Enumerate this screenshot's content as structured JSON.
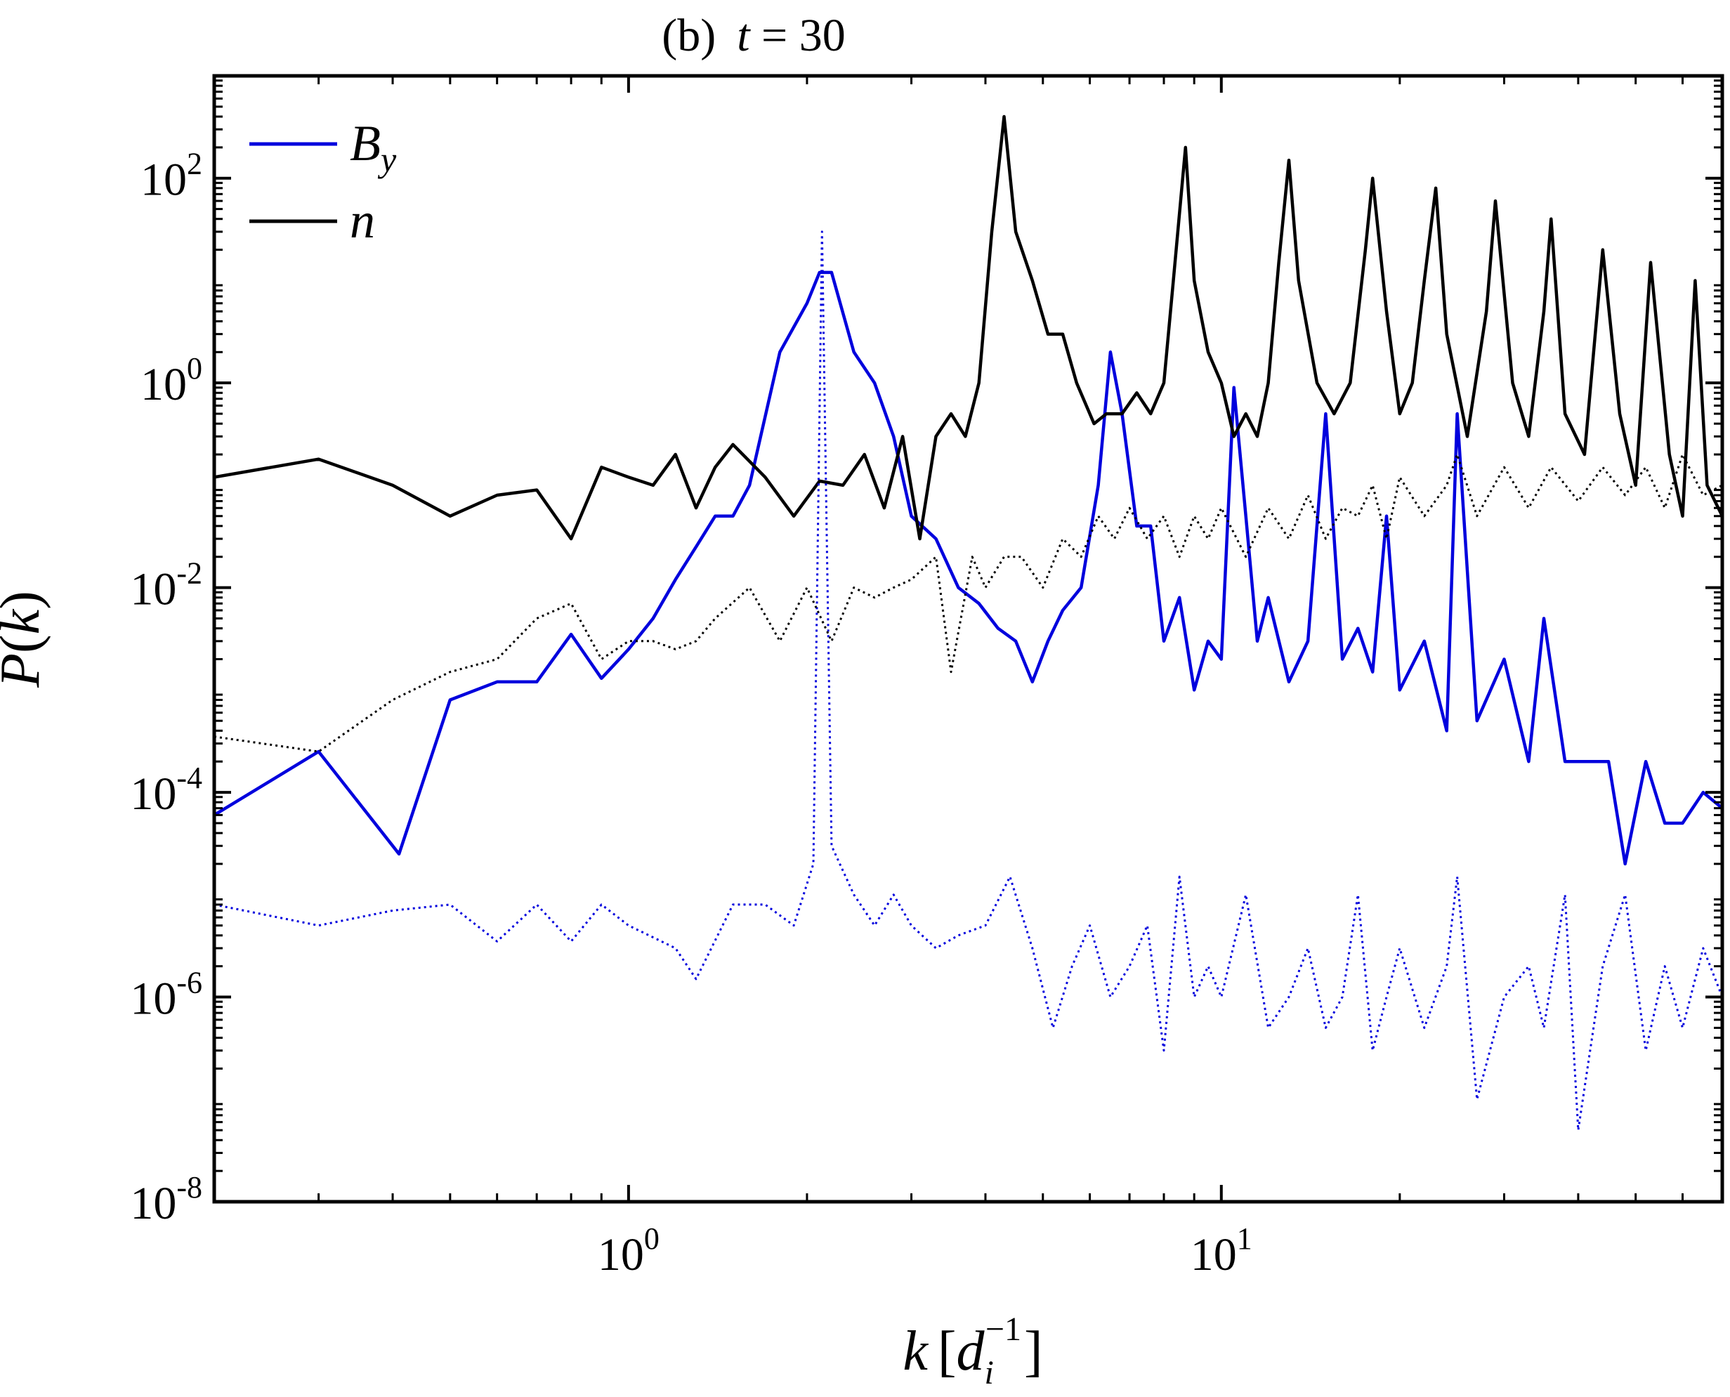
{
  "chart_data": {
    "type": "line",
    "title": {
      "label": "(b)",
      "var": "t",
      "eq": " = 30"
    },
    "xlabel": {
      "var": "k",
      "open": "[",
      "base": "d",
      "sub": "i",
      "sup": "−1",
      "close": "]"
    },
    "ylabel": {
      "name": "P",
      "open": "(",
      "var": "k",
      "close": ")"
    },
    "xscale": "log",
    "yscale": "log",
    "xlim": [
      0.2,
      70
    ],
    "ylim": [
      1e-08,
      1000
    ],
    "x_ticks": [
      {
        "value": 1,
        "base": "10",
        "exp": "0"
      },
      {
        "value": 10,
        "base": "10",
        "exp": "1"
      }
    ],
    "y_ticks": [
      {
        "value": 1e-08,
        "base": "10",
        "exp": "-8"
      },
      {
        "value": 1e-06,
        "base": "10",
        "exp": "-6"
      },
      {
        "value": 0.0001,
        "base": "10",
        "exp": "-4"
      },
      {
        "value": 0.01,
        "base": "10",
        "exp": "-2"
      },
      {
        "value": 1,
        "base": "10",
        "exp": "0"
      },
      {
        "value": 100,
        "base": "10",
        "exp": "2"
      }
    ],
    "legend": {
      "position": "top-left",
      "entries": [
        {
          "base": "B",
          "sub": "y",
          "color": "#0000dd"
        },
        {
          "base": "n",
          "sub": "",
          "color": "#000000"
        }
      ]
    },
    "series": [
      {
        "name": "B_y",
        "color": "#0000dd",
        "style": "solid",
        "points": [
          [
            0.2,
            6e-05
          ],
          [
            0.3,
            0.00025
          ],
          [
            0.41,
            2.5e-05
          ],
          [
            0.5,
            0.0008
          ],
          [
            0.6,
            0.0012
          ],
          [
            0.7,
            0.0012
          ],
          [
            0.8,
            0.0035
          ],
          [
            0.9,
            0.0013
          ],
          [
            1.0,
            0.0025
          ],
          [
            1.1,
            0.005
          ],
          [
            1.2,
            0.012
          ],
          [
            1.3,
            0.025
          ],
          [
            1.4,
            0.05
          ],
          [
            1.5,
            0.05
          ],
          [
            1.6,
            0.1
          ],
          [
            1.8,
            2
          ],
          [
            2.0,
            6
          ],
          [
            2.1,
            12
          ],
          [
            2.2,
            12
          ],
          [
            2.4,
            2
          ],
          [
            2.6,
            1
          ],
          [
            2.8,
            0.3
          ],
          [
            3.0,
            0.05
          ],
          [
            3.3,
            0.03
          ],
          [
            3.6,
            0.01
          ],
          [
            3.9,
            0.007
          ],
          [
            4.2,
            0.004
          ],
          [
            4.5,
            0.003
          ],
          [
            4.8,
            0.0012
          ],
          [
            5.1,
            0.003
          ],
          [
            5.4,
            0.006
          ],
          [
            5.8,
            0.01
          ],
          [
            6.2,
            0.1
          ],
          [
            6.5,
            2
          ],
          [
            6.8,
            0.5
          ],
          [
            7.2,
            0.04
          ],
          [
            7.6,
            0.04
          ],
          [
            8.0,
            0.003
          ],
          [
            8.5,
            0.008
          ],
          [
            9.0,
            0.001
          ],
          [
            9.5,
            0.003
          ],
          [
            10.0,
            0.002
          ],
          [
            10.5,
            0.9
          ],
          [
            11.0,
            0.05
          ],
          [
            11.5,
            0.003
          ],
          [
            12.0,
            0.008
          ],
          [
            13.0,
            0.0012
          ],
          [
            14.0,
            0.003
          ],
          [
            15.0,
            0.5
          ],
          [
            16.0,
            0.002
          ],
          [
            17.0,
            0.004
          ],
          [
            18.0,
            0.0015
          ],
          [
            19.0,
            0.05
          ],
          [
            20.0,
            0.001
          ],
          [
            22.0,
            0.003
          ],
          [
            24.0,
            0.0004
          ],
          [
            25.0,
            0.5
          ],
          [
            27.0,
            0.0005
          ],
          [
            30.0,
            0.002
          ],
          [
            33.0,
            0.0002
          ],
          [
            35.0,
            0.005
          ],
          [
            38.0,
            0.0002
          ],
          [
            42.0,
            0.0002
          ],
          [
            45.0,
            0.0002
          ],
          [
            48.0,
            2e-05
          ],
          [
            52.0,
            0.0002
          ],
          [
            56.0,
            5e-05
          ],
          [
            60.0,
            5e-05
          ],
          [
            65.0,
            0.0001
          ],
          [
            70.0,
            7e-05
          ]
        ]
      },
      {
        "name": "n",
        "color": "#000000",
        "style": "solid",
        "points": [
          [
            0.2,
            0.12
          ],
          [
            0.3,
            0.18
          ],
          [
            0.4,
            0.1
          ],
          [
            0.5,
            0.05
          ],
          [
            0.6,
            0.08
          ],
          [
            0.7,
            0.09
          ],
          [
            0.8,
            0.03
          ],
          [
            0.9,
            0.15
          ],
          [
            1.0,
            0.12
          ],
          [
            1.1,
            0.1
          ],
          [
            1.2,
            0.2
          ],
          [
            1.3,
            0.06
          ],
          [
            1.4,
            0.15
          ],
          [
            1.5,
            0.25
          ],
          [
            1.7,
            0.12
          ],
          [
            1.9,
            0.05
          ],
          [
            2.1,
            0.11
          ],
          [
            2.3,
            0.1
          ],
          [
            2.5,
            0.2
          ],
          [
            2.7,
            0.06
          ],
          [
            2.9,
            0.3
          ],
          [
            3.1,
            0.03
          ],
          [
            3.3,
            0.3
          ],
          [
            3.5,
            0.5
          ],
          [
            3.7,
            0.3
          ],
          [
            3.9,
            1
          ],
          [
            4.1,
            30
          ],
          [
            4.3,
            400
          ],
          [
            4.5,
            30
          ],
          [
            4.8,
            10
          ],
          [
            5.1,
            3
          ],
          [
            5.4,
            3
          ],
          [
            5.7,
            1
          ],
          [
            6.1,
            0.4
          ],
          [
            6.4,
            0.5
          ],
          [
            6.8,
            0.5
          ],
          [
            7.2,
            0.8
          ],
          [
            7.6,
            0.5
          ],
          [
            8.0,
            1
          ],
          [
            8.3,
            10
          ],
          [
            8.7,
            200
          ],
          [
            9.0,
            10
          ],
          [
            9.5,
            2
          ],
          [
            10.0,
            1
          ],
          [
            10.5,
            0.3
          ],
          [
            11.0,
            0.5
          ],
          [
            11.5,
            0.3
          ],
          [
            12.0,
            1
          ],
          [
            12.5,
            15
          ],
          [
            13.0,
            150
          ],
          [
            13.5,
            10
          ],
          [
            14.5,
            1
          ],
          [
            15.5,
            0.5
          ],
          [
            16.5,
            1
          ],
          [
            17.5,
            20
          ],
          [
            18.0,
            100
          ],
          [
            19.0,
            5
          ],
          [
            20.0,
            0.5
          ],
          [
            21.0,
            1
          ],
          [
            22.0,
            10
          ],
          [
            23.0,
            80
          ],
          [
            24.0,
            3
          ],
          [
            26.0,
            0.3
          ],
          [
            28.0,
            5
          ],
          [
            29.0,
            60
          ],
          [
            31.0,
            1
          ],
          [
            33.0,
            0.3
          ],
          [
            35.0,
            5
          ],
          [
            36.0,
            40
          ],
          [
            38.0,
            0.5
          ],
          [
            41.0,
            0.2
          ],
          [
            44.0,
            20
          ],
          [
            47.0,
            0.5
          ],
          [
            50.0,
            0.1
          ],
          [
            53.0,
            15
          ],
          [
            57.0,
            0.2
          ],
          [
            60.0,
            0.05
          ],
          [
            63.0,
            10
          ],
          [
            66.0,
            0.1
          ],
          [
            70.0,
            0.05
          ]
        ]
      },
      {
        "name": "B_y (dotted)",
        "color": "#0000dd",
        "style": "dotted",
        "points": [
          [
            0.2,
            8e-06
          ],
          [
            0.3,
            5e-06
          ],
          [
            0.4,
            7e-06
          ],
          [
            0.5,
            8e-06
          ],
          [
            0.6,
            3.5e-06
          ],
          [
            0.7,
            8e-06
          ],
          [
            0.8,
            3.5e-06
          ],
          [
            0.9,
            8e-06
          ],
          [
            1.0,
            5e-06
          ],
          [
            1.2,
            3e-06
          ],
          [
            1.3,
            1.5e-06
          ],
          [
            1.5,
            8e-06
          ],
          [
            1.7,
            8e-06
          ],
          [
            1.9,
            5e-06
          ],
          [
            2.05,
            2e-05
          ],
          [
            2.12,
            30
          ],
          [
            2.2,
            3e-05
          ],
          [
            2.4,
            1e-05
          ],
          [
            2.6,
            5e-06
          ],
          [
            2.8,
            1e-05
          ],
          [
            3.0,
            5e-06
          ],
          [
            3.3,
            3e-06
          ],
          [
            3.6,
            4e-06
          ],
          [
            4.0,
            5e-06
          ],
          [
            4.4,
            1.5e-05
          ],
          [
            4.8,
            3e-06
          ],
          [
            5.2,
            5e-07
          ],
          [
            5.6,
            2e-06
          ],
          [
            6.0,
            5e-06
          ],
          [
            6.5,
            1e-06
          ],
          [
            7.0,
            2e-06
          ],
          [
            7.5,
            5e-06
          ],
          [
            8.0,
            3e-07
          ],
          [
            8.5,
            1.5e-05
          ],
          [
            9.0,
            1e-06
          ],
          [
            9.5,
            2e-06
          ],
          [
            10.0,
            1e-06
          ],
          [
            11.0,
            1e-05
          ],
          [
            12.0,
            5e-07
          ],
          [
            13.0,
            1e-06
          ],
          [
            14.0,
            3e-06
          ],
          [
            15.0,
            5e-07
          ],
          [
            16.0,
            1e-06
          ],
          [
            17.0,
            1e-05
          ],
          [
            18.0,
            3e-07
          ],
          [
            19.0,
            1e-06
          ],
          [
            20.0,
            3e-06
          ],
          [
            22.0,
            5e-07
          ],
          [
            24.0,
            2e-06
          ],
          [
            25.0,
            1.5e-05
          ],
          [
            27.0,
            1e-07
          ],
          [
            30.0,
            1e-06
          ],
          [
            33.0,
            2e-06
          ],
          [
            35.0,
            5e-07
          ],
          [
            38.0,
            1e-05
          ],
          [
            40.0,
            5e-08
          ],
          [
            44.0,
            2e-06
          ],
          [
            48.0,
            1e-05
          ],
          [
            52.0,
            3e-07
          ],
          [
            56.0,
            2e-06
          ],
          [
            60.0,
            5e-07
          ],
          [
            65.0,
            3e-06
          ],
          [
            70.0,
            1e-06
          ]
        ]
      },
      {
        "name": "n (dotted)",
        "color": "#000000",
        "style": "dotted",
        "points": [
          [
            0.2,
            0.00035
          ],
          [
            0.3,
            0.00025
          ],
          [
            0.4,
            0.0008
          ],
          [
            0.5,
            0.0015
          ],
          [
            0.6,
            0.002
          ],
          [
            0.7,
            0.005
          ],
          [
            0.8,
            0.007
          ],
          [
            0.9,
            0.002
          ],
          [
            1.0,
            0.003
          ],
          [
            1.1,
            0.003
          ],
          [
            1.2,
            0.0025
          ],
          [
            1.3,
            0.003
          ],
          [
            1.4,
            0.005
          ],
          [
            1.6,
            0.01
          ],
          [
            1.8,
            0.003
          ],
          [
            2.0,
            0.01
          ],
          [
            2.2,
            0.003
          ],
          [
            2.4,
            0.01
          ],
          [
            2.6,
            0.008
          ],
          [
            2.8,
            0.01
          ],
          [
            3.0,
            0.012
          ],
          [
            3.3,
            0.02
          ],
          [
            3.5,
            0.0015
          ],
          [
            3.8,
            0.02
          ],
          [
            4.0,
            0.01
          ],
          [
            4.3,
            0.02
          ],
          [
            4.6,
            0.02
          ],
          [
            5.0,
            0.01
          ],
          [
            5.4,
            0.03
          ],
          [
            5.8,
            0.02
          ],
          [
            6.2,
            0.05
          ],
          [
            6.6,
            0.03
          ],
          [
            7.0,
            0.06
          ],
          [
            7.5,
            0.03
          ],
          [
            8.0,
            0.05
          ],
          [
            8.5,
            0.02
          ],
          [
            9.0,
            0.05
          ],
          [
            9.5,
            0.03
          ],
          [
            10.0,
            0.06
          ],
          [
            11.0,
            0.02
          ],
          [
            12.0,
            0.06
          ],
          [
            13.0,
            0.03
          ],
          [
            14.0,
            0.08
          ],
          [
            15.0,
            0.03
          ],
          [
            16.0,
            0.06
          ],
          [
            17.0,
            0.05
          ],
          [
            18.0,
            0.1
          ],
          [
            19.0,
            0.03
          ],
          [
            20.0,
            0.12
          ],
          [
            22.0,
            0.05
          ],
          [
            24.0,
            0.1
          ],
          [
            25.0,
            0.2
          ],
          [
            27.0,
            0.05
          ],
          [
            30.0,
            0.15
          ],
          [
            33.0,
            0.06
          ],
          [
            36.0,
            0.15
          ],
          [
            40.0,
            0.07
          ],
          [
            44.0,
            0.15
          ],
          [
            48.0,
            0.08
          ],
          [
            52.0,
            0.15
          ],
          [
            56.0,
            0.06
          ],
          [
            60.0,
            0.2
          ],
          [
            65.0,
            0.08
          ],
          [
            70.0,
            0.1
          ]
        ]
      }
    ]
  }
}
